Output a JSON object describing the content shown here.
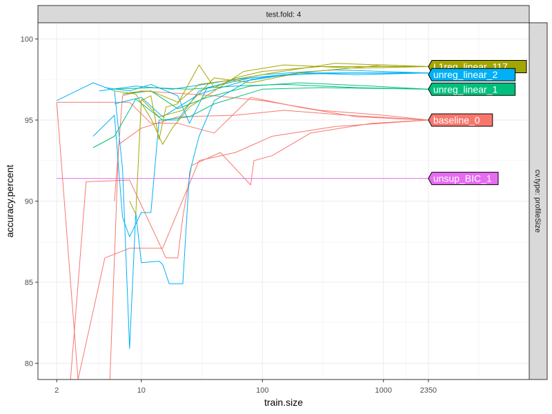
{
  "chart_data": {
    "type": "line",
    "facet_top": "test.fold: 4",
    "facet_right": "cv.type: profileSize",
    "xlabel": "train.size",
    "ylabel": "accuracy.percent",
    "x_scale": "log10",
    "xlim": [
      1.4,
      16000
    ],
    "ylim": [
      79.0,
      101.0
    ],
    "x_ticks": [
      2,
      10,
      100,
      1000,
      2350
    ],
    "x_tick_labels": [
      "2",
      "10",
      "100",
      "1000",
      "2350"
    ],
    "y_ticks": [
      80,
      85,
      90,
      95,
      100
    ],
    "y_tick_labels": [
      "80",
      "85",
      "90",
      "95",
      "100"
    ],
    "grid": true,
    "legend": "none",
    "end_labels": [
      {
        "text": "L1reg_linear_117",
        "y": 98.3,
        "color": "#A3A500"
      },
      {
        "text": "unreg_linear_2",
        "y": 97.8,
        "color": "#00B0F6"
      },
      {
        "text": "unreg_linear_1",
        "y": 96.9,
        "color": "#00BF7D"
      },
      {
        "text": "baseline_0",
        "y": 95.0,
        "color": "#F8766D"
      },
      {
        "text": "unsup_BIC_1",
        "y": 91.4,
        "color": "#E76BF3"
      }
    ],
    "series": [
      {
        "group": "baseline_0",
        "color": "#F8766D",
        "points": [
          [
            2,
            96.1
          ],
          [
            8,
            96.1
          ],
          [
            12,
            94.8
          ],
          [
            20,
            94.8
          ],
          [
            40,
            94.2
          ],
          [
            80,
            96.4
          ],
          [
            200,
            95.8
          ],
          [
            600,
            95.2
          ],
          [
            2350,
            95.0
          ]
        ]
      },
      {
        "group": "baseline_0",
        "color": "#F8766D",
        "points": [
          [
            2,
            96.1
          ],
          [
            3,
            79.0
          ],
          [
            5,
            86.5
          ],
          [
            8,
            87.1
          ],
          [
            15,
            87.1
          ],
          [
            30,
            92.5
          ],
          [
            60,
            93.0
          ],
          [
            120,
            94.0
          ],
          [
            400,
            94.6
          ],
          [
            2350,
            95.0
          ]
        ]
      },
      {
        "group": "baseline_0",
        "color": "#F8766D",
        "points": [
          [
            2.6,
            79.0
          ],
          [
            3.5,
            91.2
          ],
          [
            8,
            91.3
          ],
          [
            16,
            86.5
          ],
          [
            20,
            86.5
          ],
          [
            22,
            89.0
          ],
          [
            26,
            92.2
          ],
          [
            45,
            93.0
          ],
          [
            80,
            91.0
          ],
          [
            85,
            92.5
          ],
          [
            120,
            92.8
          ],
          [
            250,
            94.2
          ],
          [
            800,
            94.8
          ],
          [
            2350,
            95.0
          ]
        ]
      },
      {
        "group": "baseline_0",
        "color": "#F8766D",
        "points": [
          [
            5.5,
            79.0
          ],
          [
            6.5,
            93.5
          ],
          [
            10,
            94.5
          ],
          [
            20,
            95.2
          ],
          [
            60,
            95.3
          ],
          [
            150,
            95.6
          ],
          [
            500,
            95.3
          ],
          [
            2350,
            95.0
          ]
        ]
      },
      {
        "group": "baseline_0",
        "color": "#F8766D",
        "points": [
          [
            6,
            90.0
          ],
          [
            7,
            96.5
          ],
          [
            10,
            96.8
          ],
          [
            40,
            96.5
          ],
          [
            100,
            96.2
          ],
          [
            300,
            95.6
          ],
          [
            1000,
            95.3
          ],
          [
            2350,
            95.0
          ]
        ]
      },
      {
        "group": "unreg_linear_2",
        "color": "#00B0F6",
        "points": [
          [
            2,
            96.2
          ],
          [
            4,
            97.3
          ],
          [
            6,
            96.8
          ],
          [
            7,
            92.0
          ],
          [
            8,
            80.9
          ],
          [
            9,
            89.3
          ],
          [
            10,
            86.2
          ],
          [
            14,
            86.3
          ],
          [
            15,
            86.1
          ],
          [
            17,
            84.9
          ],
          [
            22,
            84.9
          ],
          [
            25,
            91.7
          ],
          [
            30,
            94.0
          ],
          [
            40,
            96.2
          ],
          [
            80,
            97.5
          ],
          [
            200,
            97.9
          ],
          [
            600,
            97.8
          ],
          [
            2350,
            97.9
          ]
        ]
      },
      {
        "group": "unreg_linear_2",
        "color": "#00B0F6",
        "points": [
          [
            4,
            94.0
          ],
          [
            6,
            95.3
          ],
          [
            7,
            89.0
          ],
          [
            8,
            87.8
          ],
          [
            10,
            89.3
          ],
          [
            12,
            89.3
          ],
          [
            14,
            95.0
          ],
          [
            20,
            95.0
          ],
          [
            30,
            96.8
          ],
          [
            60,
            97.5
          ],
          [
            150,
            97.8
          ],
          [
            500,
            97.9
          ],
          [
            2350,
            97.9
          ]
        ]
      },
      {
        "group": "unreg_linear_2",
        "color": "#00B0F6",
        "points": [
          [
            5,
            97.0
          ],
          [
            8,
            96.8
          ],
          [
            12,
            97.2
          ],
          [
            20,
            96.5
          ],
          [
            25,
            94.8
          ],
          [
            35,
            97.0
          ],
          [
            80,
            97.6
          ],
          [
            300,
            97.9
          ],
          [
            2350,
            97.9
          ]
        ]
      },
      {
        "group": "unreg_linear_2",
        "color": "#00B0F6",
        "points": [
          [
            6,
            96.0
          ],
          [
            10,
            96.4
          ],
          [
            15,
            95.2
          ],
          [
            30,
            96.6
          ],
          [
            70,
            97.4
          ],
          [
            200,
            97.9
          ],
          [
            2350,
            97.9
          ]
        ]
      },
      {
        "group": "unreg_linear_2",
        "color": "#00B0F6",
        "points": [
          [
            4.5,
            96.8
          ],
          [
            9,
            97.1
          ],
          [
            18,
            96.9
          ],
          [
            40,
            97.3
          ],
          [
            100,
            97.8
          ],
          [
            400,
            98.1
          ],
          [
            2350,
            97.9
          ]
        ]
      },
      {
        "group": "unreg_linear_1",
        "color": "#00BF7D",
        "points": [
          [
            4,
            93.3
          ],
          [
            6,
            94.0
          ],
          [
            9,
            96.3
          ],
          [
            15,
            95.0
          ],
          [
            25,
            95.2
          ],
          [
            40,
            96.0
          ],
          [
            100,
            96.9
          ],
          [
            300,
            97.0
          ],
          [
            2350,
            96.9
          ]
        ]
      },
      {
        "group": "unreg_linear_1",
        "color": "#00BF7D",
        "points": [
          [
            7,
            96.6
          ],
          [
            12,
            96.8
          ],
          [
            20,
            95.7
          ],
          [
            35,
            96.4
          ],
          [
            80,
            97.1
          ],
          [
            200,
            97.3
          ],
          [
            800,
            97.1
          ],
          [
            2350,
            96.9
          ]
        ]
      },
      {
        "group": "unreg_linear_1",
        "color": "#00BF7D",
        "points": [
          [
            6,
            96.9
          ],
          [
            12,
            97.0
          ],
          [
            25,
            96.9
          ],
          [
            60,
            97.1
          ],
          [
            150,
            97.2
          ],
          [
            600,
            97.0
          ],
          [
            2350,
            96.9
          ]
        ]
      },
      {
        "group": "L1reg_linear_117",
        "color": "#A3A500",
        "points": [
          [
            8,
            90.0
          ],
          [
            9,
            89.2
          ],
          [
            10,
            96.2
          ],
          [
            12,
            96.5
          ],
          [
            14,
            93.8
          ],
          [
            16,
            95.8
          ],
          [
            20,
            96.0
          ],
          [
            30,
            98.4
          ],
          [
            40,
            97.0
          ],
          [
            60,
            97.6
          ],
          [
            100,
            98.0
          ],
          [
            300,
            98.3
          ],
          [
            2350,
            98.3
          ]
        ]
      },
      {
        "group": "L1reg_linear_117",
        "color": "#A3A500",
        "points": [
          [
            6,
            96.8
          ],
          [
            9,
            96.6
          ],
          [
            12,
            95.1
          ],
          [
            15,
            93.5
          ],
          [
            18,
            94.5
          ],
          [
            25,
            95.8
          ],
          [
            40,
            96.8
          ],
          [
            70,
            98.0
          ],
          [
            150,
            98.4
          ],
          [
            600,
            98.2
          ],
          [
            2350,
            98.3
          ]
        ]
      },
      {
        "group": "L1reg_linear_117",
        "color": "#A3A500",
        "points": [
          [
            8,
            96.7
          ],
          [
            12,
            96.8
          ],
          [
            20,
            96.1
          ],
          [
            30,
            97.2
          ],
          [
            60,
            97.5
          ],
          [
            120,
            97.9
          ],
          [
            400,
            98.5
          ],
          [
            2350,
            98.3
          ]
        ]
      },
      {
        "group": "L1reg_linear_117",
        "color": "#A3A500",
        "points": [
          [
            10,
            96.3
          ],
          [
            14,
            95.2
          ],
          [
            22,
            95.6
          ],
          [
            40,
            97.6
          ],
          [
            80,
            97.3
          ],
          [
            200,
            97.9
          ],
          [
            1000,
            98.4
          ],
          [
            2350,
            98.3
          ]
        ]
      },
      {
        "group": "unsup_BIC_1",
        "color": "#E76BF3",
        "points": [
          [
            2,
            91.4
          ],
          [
            2350,
            91.4
          ]
        ]
      }
    ]
  }
}
